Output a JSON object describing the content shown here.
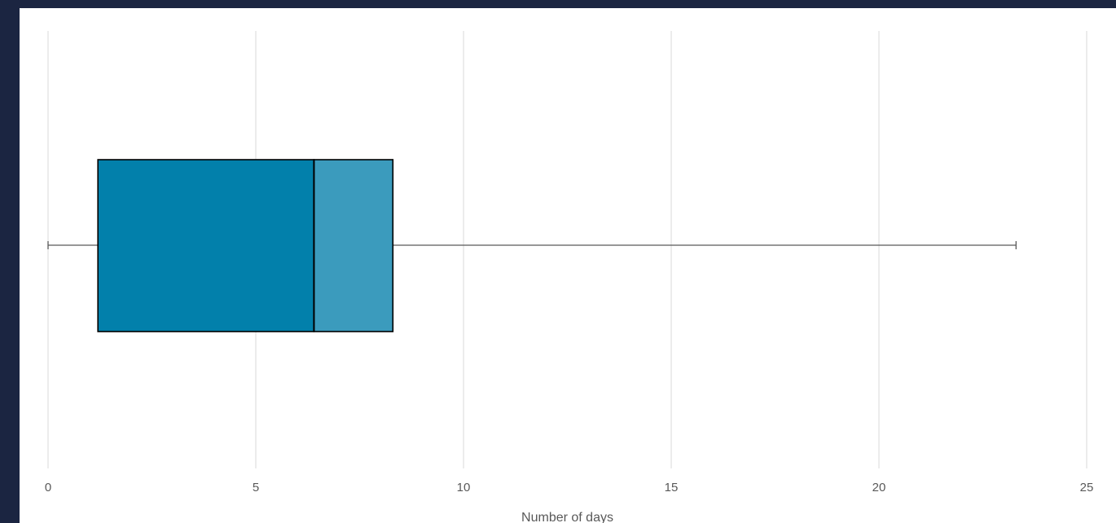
{
  "chart_data": {
    "type": "box",
    "orientation": "horizontal",
    "xlabel": "Number of days",
    "xlim": [
      0,
      25
    ],
    "xticks": [
      0,
      5,
      10,
      15,
      20,
      25
    ],
    "grid": true,
    "box": {
      "min": 0,
      "q1": 1.2,
      "median": 6.4,
      "q3": 8.3,
      "max": 23.3
    },
    "colors": {
      "lower_box": "#0280ab",
      "upper_box": "#3b9bbd",
      "outline": "#000000",
      "whisker": "#595959",
      "grid": "#d9d9d9",
      "background": "#1b2541"
    }
  }
}
